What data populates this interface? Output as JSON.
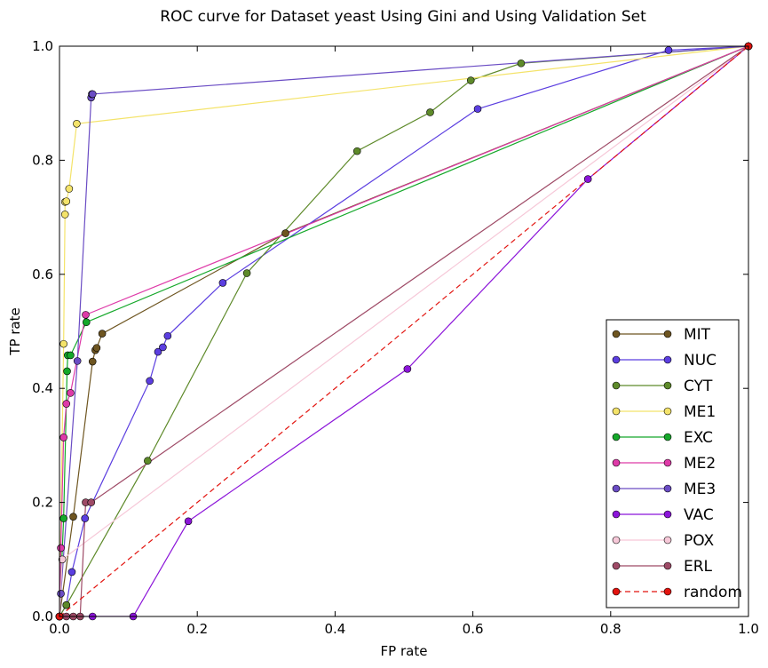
{
  "chart_data": {
    "type": "line",
    "title": "ROC curve for Dataset yeast Using Gini and Using Validation Set",
    "xlabel": "FP rate",
    "ylabel": "TP rate",
    "xlim": [
      0,
      1
    ],
    "ylim": [
      0,
      1
    ],
    "xticks": [
      "0.0",
      "0.2",
      "0.4",
      "0.6",
      "0.8",
      "1.0"
    ],
    "yticks": [
      "0.0",
      "0.2",
      "0.4",
      "0.6",
      "0.8",
      "1.0"
    ],
    "grid": false,
    "legend_position": "lower-right",
    "series": [
      {
        "name": "MIT",
        "color": "#6e5520",
        "dashed": false,
        "points": [
          [
            0,
            0
          ],
          [
            0.0,
            0.0
          ],
          [
            0.02,
            0.175
          ],
          [
            0.048,
            0.447
          ],
          [
            0.052,
            0.467
          ],
          [
            0.054,
            0.471
          ],
          [
            0.062,
            0.496
          ],
          [
            0.328,
            0.672
          ],
          [
            1,
            1
          ]
        ]
      },
      {
        "name": "NUC",
        "color": "#5b3ee0",
        "dashed": false,
        "points": [
          [
            0,
            0
          ],
          [
            0.01,
            0.02
          ],
          [
            0.018,
            0.078
          ],
          [
            0.037,
            0.172
          ],
          [
            0.131,
            0.413
          ],
          [
            0.143,
            0.464
          ],
          [
            0.15,
            0.472
          ],
          [
            0.157,
            0.492
          ],
          [
            0.237,
            0.585
          ],
          [
            0.607,
            0.89
          ],
          [
            0.884,
            0.993
          ],
          [
            1,
            1
          ]
        ]
      },
      {
        "name": "CYT",
        "color": "#5e8a2a",
        "dashed": false,
        "points": [
          [
            0,
            0
          ],
          [
            0.01,
            0.02
          ],
          [
            0.128,
            0.273
          ],
          [
            0.272,
            0.602
          ],
          [
            0.432,
            0.816
          ],
          [
            0.538,
            0.884
          ],
          [
            0.597,
            0.94
          ],
          [
            0.67,
            0.97
          ],
          [
            1,
            1
          ]
        ]
      },
      {
        "name": "ME1",
        "color": "#f4e36a",
        "dashed": false,
        "points": [
          [
            0,
            0
          ],
          [
            0.0,
            0.0
          ],
          [
            0.006,
            0.478
          ],
          [
            0.008,
            0.705
          ],
          [
            0.008,
            0.727
          ],
          [
            0.01,
            0.728
          ],
          [
            0.014,
            0.75
          ],
          [
            0.025,
            0.864
          ],
          [
            1,
            1
          ]
        ]
      },
      {
        "name": "EXC",
        "color": "#15a82a",
        "dashed": false,
        "points": [
          [
            0,
            0
          ],
          [
            0.006,
            0.172
          ],
          [
            0.011,
            0.43
          ],
          [
            0.012,
            0.458
          ],
          [
            0.016,
            0.458
          ],
          [
            0.039,
            0.516
          ],
          [
            1,
            1
          ]
        ]
      },
      {
        "name": "ME2",
        "color": "#de3aa8",
        "dashed": false,
        "points": [
          [
            0,
            0
          ],
          [
            0.002,
            0.12
          ],
          [
            0.006,
            0.314
          ],
          [
            0.01,
            0.373
          ],
          [
            0.016,
            0.392
          ],
          [
            0.038,
            0.529
          ],
          [
            1,
            1
          ]
        ]
      },
      {
        "name": "ME3",
        "color": "#6a4cc4",
        "dashed": false,
        "points": [
          [
            0,
            0
          ],
          [
            0.002,
            0.04
          ],
          [
            0.026,
            0.448
          ],
          [
            0.046,
            0.91
          ],
          [
            0.047,
            0.916
          ],
          [
            0.048,
            0.916
          ],
          [
            1,
            1
          ]
        ]
      },
      {
        "name": "VAC",
        "color": "#8b14d9",
        "dashed": false,
        "points": [
          [
            0,
            0
          ],
          [
            0.048,
            0.0
          ],
          [
            0.107,
            0.0
          ],
          [
            0.187,
            0.167
          ],
          [
            0.505,
            0.434
          ],
          [
            0.767,
            0.767
          ],
          [
            1,
            1
          ]
        ]
      },
      {
        "name": "POX",
        "color": "#f6c8d8",
        "dashed": false,
        "points": [
          [
            0,
            0
          ],
          [
            0.004,
            0.1
          ],
          [
            1,
            1
          ]
        ]
      },
      {
        "name": "ERL",
        "color": "#9e4a66",
        "dashed": false,
        "points": [
          [
            0,
            0
          ],
          [
            0.01,
            0.0
          ],
          [
            0.02,
            0.0
          ],
          [
            0.03,
            0.0
          ],
          [
            0.038,
            0.2
          ],
          [
            0.046,
            0.2
          ],
          [
            1,
            1
          ]
        ]
      },
      {
        "name": "random",
        "color": "#e2130e",
        "dashed": true,
        "points": [
          [
            0,
            0
          ],
          [
            1,
            1
          ]
        ]
      }
    ]
  }
}
